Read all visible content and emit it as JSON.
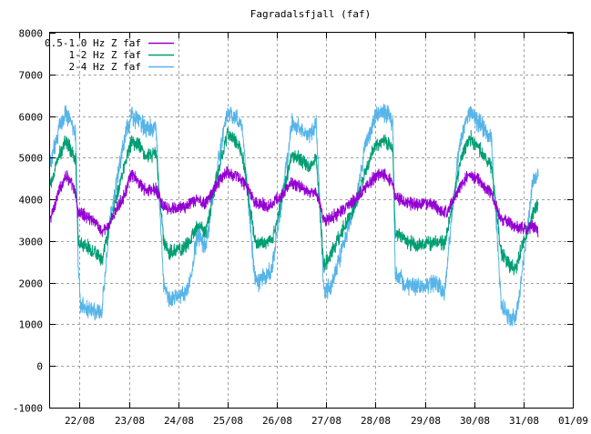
{
  "chart_data": {
    "type": "line",
    "title": "Fagradalsfjall (faf)",
    "xlabel": "",
    "ylabel": "",
    "ylim": [
      -1000,
      8000
    ],
    "yticks": [
      -1000,
      0,
      1000,
      2000,
      3000,
      4000,
      5000,
      6000,
      7000,
      8000
    ],
    "xlim": [
      21.4,
      32.0
    ],
    "xticks": [
      {
        "pos": 22.0,
        "label": "22/08"
      },
      {
        "pos": 23.0,
        "label": "23/08"
      },
      {
        "pos": 24.0,
        "label": "24/08"
      },
      {
        "pos": 25.0,
        "label": "25/08"
      },
      {
        "pos": 26.0,
        "label": "26/08"
      },
      {
        "pos": 27.0,
        "label": "27/08"
      },
      {
        "pos": 28.0,
        "label": "28/08"
      },
      {
        "pos": 29.0,
        "label": "29/08"
      },
      {
        "pos": 30.0,
        "label": "30/08"
      },
      {
        "pos": 31.0,
        "label": "31/08"
      },
      {
        "pos": 32.0,
        "label": "01/09"
      }
    ],
    "grid": true,
    "legend_position": "top-left",
    "series": [
      {
        "name": "0.5-1.0 Hz Z faf",
        "color": "#9400d3",
        "noise": 120,
        "x": [
          21.4,
          21.58,
          21.72,
          21.82,
          21.92,
          21.96,
          22.3,
          22.45,
          22.55,
          22.9,
          23.05,
          23.2,
          23.35,
          23.55,
          23.7,
          23.8,
          24.2,
          24.4,
          24.55,
          24.85,
          25.0,
          25.2,
          25.3,
          25.55,
          25.65,
          25.8,
          25.9,
          26.1,
          26.3,
          26.5,
          26.65,
          26.8,
          26.95,
          27.1,
          27.3,
          27.6,
          27.8,
          28.0,
          28.2,
          28.35,
          28.4,
          28.7,
          29.0,
          29.2,
          29.4,
          29.55,
          29.7,
          29.9,
          30.05,
          30.2,
          30.35,
          30.55,
          30.7,
          30.85,
          30.95,
          31.1,
          31.2,
          31.3
        ],
        "y": [
          3500,
          4200,
          4600,
          4400,
          4100,
          3700,
          3500,
          3200,
          3300,
          4100,
          4600,
          4400,
          4200,
          4250,
          3800,
          3750,
          3850,
          4000,
          3900,
          4500,
          4650,
          4550,
          4450,
          3950,
          3900,
          3850,
          3900,
          4100,
          4400,
          4300,
          4150,
          4200,
          3500,
          3550,
          3700,
          4000,
          4300,
          4550,
          4600,
          4350,
          4050,
          3900,
          3900,
          3850,
          3650,
          3900,
          4300,
          4600,
          4500,
          4300,
          4150,
          3500,
          3450,
          3300,
          3350,
          3300,
          3350,
          3200
        ]
      },
      {
        "name": "1-2 Hz Z faf",
        "color": "#009e73",
        "noise": 140,
        "x": [
          21.4,
          21.6,
          21.72,
          21.82,
          21.92,
          21.97,
          22.3,
          22.45,
          22.6,
          22.9,
          23.05,
          23.2,
          23.35,
          23.55,
          23.7,
          23.8,
          24.2,
          24.4,
          24.55,
          24.85,
          25.0,
          25.2,
          25.3,
          25.55,
          25.65,
          25.8,
          25.9,
          26.1,
          26.3,
          26.5,
          26.65,
          26.8,
          26.95,
          27.1,
          27.3,
          27.6,
          27.8,
          28.0,
          28.2,
          28.35,
          28.4,
          28.7,
          29.0,
          29.2,
          29.4,
          29.55,
          29.7,
          29.9,
          30.05,
          30.2,
          30.35,
          30.55,
          30.7,
          30.85,
          30.95,
          31.1,
          31.2,
          31.3
        ],
        "y": [
          4300,
          5100,
          5400,
          5200,
          4950,
          3000,
          2750,
          2500,
          3300,
          4800,
          5400,
          5300,
          5050,
          5100,
          3000,
          2700,
          2900,
          3400,
          3200,
          4900,
          5600,
          5350,
          5100,
          3000,
          2950,
          3000,
          3000,
          4000,
          5050,
          4950,
          4800,
          5000,
          2400,
          2700,
          3200,
          3900,
          4700,
          5300,
          5400,
          5200,
          3200,
          2950,
          2900,
          3000,
          2950,
          3800,
          4800,
          5500,
          5300,
          5050,
          4800,
          2700,
          2450,
          2300,
          2800,
          3300,
          3700,
          3900
        ]
      },
      {
        "name": "2-4 Hz Z faf",
        "color": "#56b4e9",
        "noise": 180,
        "x": [
          21.4,
          21.6,
          21.72,
          21.82,
          21.92,
          21.97,
          22.02,
          22.3,
          22.45,
          22.6,
          22.9,
          23.05,
          23.2,
          23.35,
          23.55,
          23.7,
          23.8,
          24.2,
          24.4,
          24.55,
          24.85,
          25.0,
          25.2,
          25.3,
          25.55,
          25.65,
          25.8,
          25.9,
          26.1,
          26.3,
          26.5,
          26.65,
          26.8,
          26.95,
          27.1,
          27.3,
          27.6,
          27.8,
          28.0,
          28.2,
          28.35,
          28.4,
          28.7,
          29.0,
          29.2,
          29.4,
          29.55,
          29.7,
          29.9,
          30.05,
          30.2,
          30.35,
          30.55,
          30.7,
          30.85,
          30.95,
          31.1,
          31.2,
          31.3
        ],
        "y": [
          4800,
          5800,
          6100,
          5900,
          5600,
          2400,
          1400,
          1350,
          1300,
          3400,
          5400,
          6000,
          5900,
          5700,
          5700,
          2000,
          1600,
          1800,
          3200,
          2800,
          5200,
          6100,
          5900,
          5700,
          2100,
          2000,
          2200,
          2300,
          4000,
          5800,
          5700,
          5500,
          5800,
          1800,
          1900,
          2700,
          4000,
          5300,
          6000,
          6100,
          5800,
          2200,
          1900,
          1900,
          2000,
          1700,
          3700,
          5300,
          6100,
          5900,
          5700,
          5400,
          1500,
          1200,
          1150,
          2000,
          3500,
          4500,
          4700
        ]
      }
    ]
  }
}
